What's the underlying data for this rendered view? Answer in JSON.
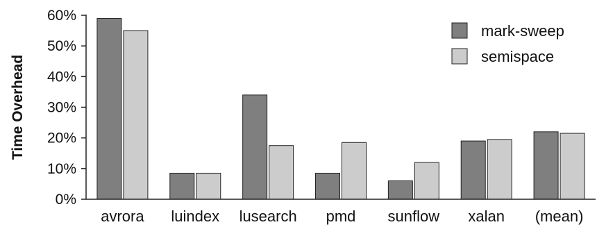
{
  "chart_data": {
    "type": "bar",
    "title": "",
    "xlabel": "",
    "ylabel": "Time Overhead",
    "ylim": [
      0,
      60
    ],
    "yticks": [
      "0%",
      "10%",
      "20%",
      "30%",
      "40%",
      "50%",
      "60%"
    ],
    "categories": [
      "avrora",
      "luindex",
      "lusearch",
      "pmd",
      "sunflow",
      "xalan",
      "(mean)"
    ],
    "series": [
      {
        "name": "mark-sweep",
        "color": "#7f7f7f",
        "values": [
          59,
          8.5,
          34,
          8.5,
          6,
          19,
          22
        ]
      },
      {
        "name": "semispace",
        "color": "#cccccc",
        "values": [
          55,
          8.5,
          17.5,
          18.5,
          12,
          19.5,
          21.5
        ]
      }
    ],
    "legend_position": "top-right",
    "grid": false
  }
}
